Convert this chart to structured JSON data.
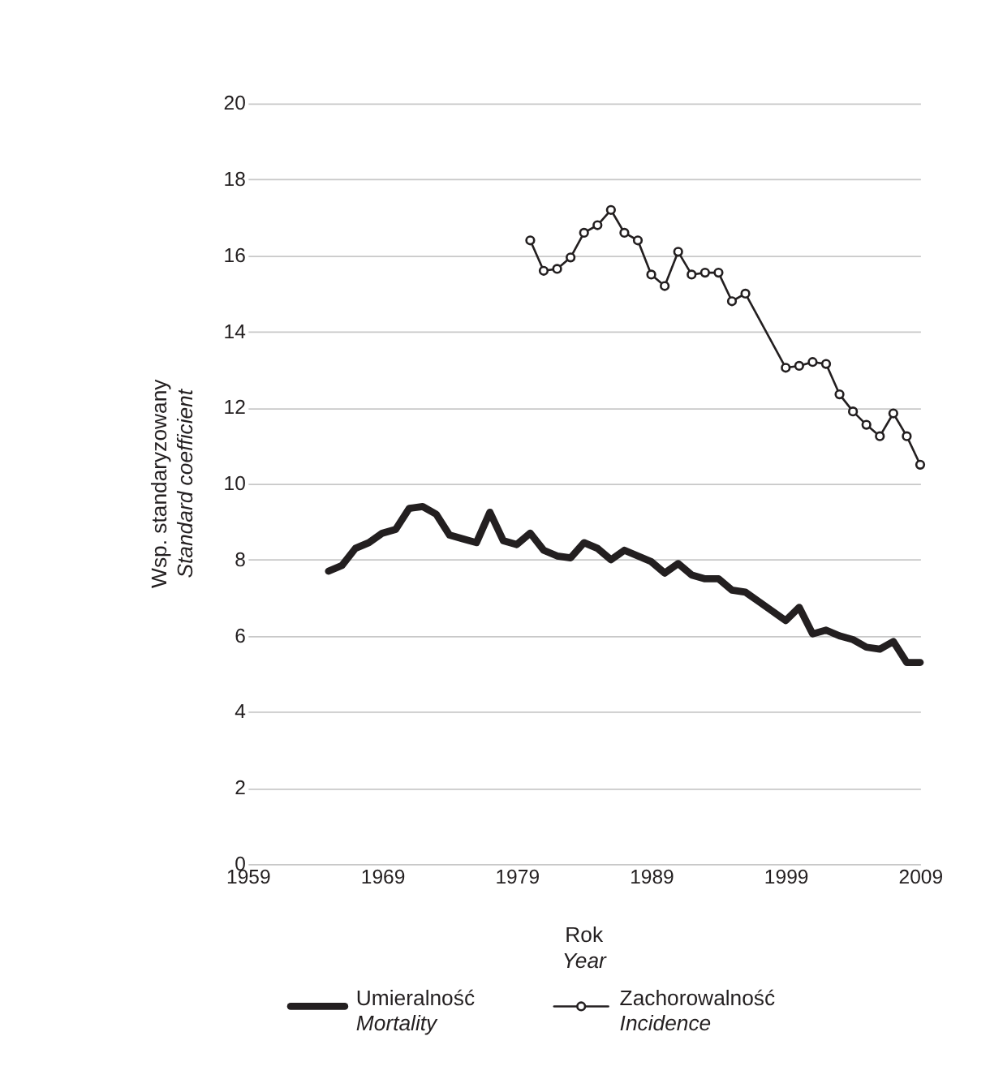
{
  "chart_data": {
    "type": "line",
    "xlabel": "Rok\nYear",
    "ylabel": "Wsp. standaryzowany\nStandard coefficient",
    "xlim": [
      1959,
      2009
    ],
    "xticks": [
      1959,
      1969,
      1979,
      1989,
      1999,
      2009
    ],
    "ylim": [
      0,
      20
    ],
    "yticks": [
      0,
      2,
      4,
      6,
      8,
      10,
      12,
      14,
      16,
      18,
      20
    ],
    "grid": "y",
    "legend": "bottom",
    "series": [
      {
        "name": "Umieralność\nMortality",
        "color": "#231f20",
        "marker": "none",
        "x": [
          1965,
          1966,
          1967,
          1968,
          1969,
          1970,
          1971,
          1972,
          1973,
          1974,
          1975,
          1976,
          1977,
          1978,
          1979,
          1980,
          1981,
          1982,
          1983,
          1984,
          1985,
          1986,
          1987,
          1988,
          1989,
          1990,
          1991,
          1992,
          1993,
          1994,
          1995,
          1996,
          1997,
          1998,
          1999,
          2000,
          2001,
          2002,
          2003,
          2004,
          2005,
          2006,
          2007,
          2008,
          2009
        ],
        "values": [
          7.7,
          7.85,
          8.3,
          8.45,
          8.7,
          8.8,
          9.35,
          9.4,
          9.2,
          8.65,
          8.55,
          8.45,
          9.25,
          8.5,
          8.4,
          8.7,
          8.25,
          8.1,
          8.05,
          8.45,
          8.3,
          8.0,
          8.25,
          8.1,
          7.95,
          7.65,
          7.9,
          7.6,
          7.5,
          7.5,
          7.2,
          7.15,
          6.9,
          6.65,
          6.4,
          6.75,
          6.05,
          6.15,
          6.0,
          5.9,
          5.7,
          5.65,
          5.85,
          5.3,
          5.3
        ]
      },
      {
        "name": "Zachorowalność\nIncidence",
        "color": "#231f20",
        "marker": "circle",
        "x": [
          1980,
          1981,
          1982,
          1983,
          1984,
          1985,
          1986,
          1987,
          1988,
          1989,
          1990,
          1991,
          1992,
          1993,
          1994,
          1995,
          1996,
          1999,
          2000,
          2001,
          2002,
          2003,
          2004,
          2005,
          2006,
          2007,
          2008,
          2009
        ],
        "values": [
          16.4,
          15.6,
          15.65,
          15.95,
          16.6,
          16.8,
          17.2,
          16.6,
          16.4,
          15.5,
          15.2,
          16.1,
          15.5,
          15.55,
          15.55,
          14.8,
          15.0,
          13.05,
          13.1,
          13.2,
          13.15,
          12.35,
          11.9,
          11.55,
          11.25,
          11.85,
          11.25,
          10.5
        ]
      }
    ]
  }
}
